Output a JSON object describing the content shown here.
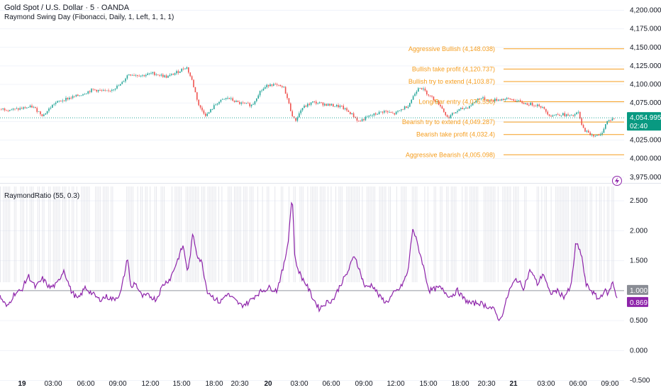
{
  "header": {
    "symbol_title": "Gold Spot / U.S. Dollar · 5 · OANDA",
    "indicator_title": "Raymond Swing Day (Fibonacci, Daily, 1, Left, 1, 1, 1)"
  },
  "indicator_pane": {
    "title": "RaymondRatio (55, 0.3)"
  },
  "colors": {
    "up": "#26a69a",
    "down": "#ef5350",
    "level": "#f59d1e",
    "ratio": "#8e24aa",
    "price_badge": "#089981",
    "current_dotted": "#26a69a",
    "grid": "#f0f3fa",
    "band": "#d1d4dc",
    "text": "#131722",
    "axis_text": "#131722"
  },
  "chart_data": [
    {
      "type": "candlestick",
      "title": "Gold Spot / U.S. Dollar · 5 · OANDA",
      "ylim": [
        3970,
        4210
      ],
      "y_ticks": [
        4200,
        4175,
        4150,
        4125,
        4100,
        4075,
        4050,
        4025,
        4000,
        3975
      ],
      "y_tick_labels": [
        "4,200.000",
        "4,175.000",
        "4,150.000",
        "4,125.000",
        "4,100.000",
        "4,075.000",
        "4,050.000",
        "4,025.000",
        "4,000.000",
        "3,975.000"
      ],
      "current_price": 4054.995,
      "current_price_label": "4,054.995",
      "countdown_label": "02:40",
      "close_anchors": [
        [
          0,
          4067
        ],
        [
          20,
          4066
        ],
        [
          45,
          4070
        ],
        [
          60,
          4058
        ],
        [
          75,
          4074
        ],
        [
          90,
          4080
        ],
        [
          110,
          4085
        ],
        [
          130,
          4093
        ],
        [
          150,
          4090
        ],
        [
          170,
          4100
        ],
        [
          180,
          4114
        ],
        [
          200,
          4112
        ],
        [
          215,
          4115
        ],
        [
          235,
          4110
        ],
        [
          250,
          4117
        ],
        [
          262,
          4124
        ],
        [
          270,
          4105
        ],
        [
          280,
          4070
        ],
        [
          290,
          4058
        ],
        [
          305,
          4075
        ],
        [
          320,
          4082
        ],
        [
          335,
          4075
        ],
        [
          355,
          4072
        ],
        [
          365,
          4090
        ],
        [
          380,
          4101
        ],
        [
          400,
          4095
        ],
        [
          410,
          4062
        ],
        [
          415,
          4050
        ],
        [
          425,
          4068
        ],
        [
          440,
          4076
        ],
        [
          465,
          4072
        ],
        [
          480,
          4070
        ],
        [
          495,
          4060
        ],
        [
          505,
          4050
        ],
        [
          520,
          4057
        ],
        [
          540,
          4064
        ],
        [
          555,
          4060
        ],
        [
          575,
          4072
        ],
        [
          590,
          4098
        ],
        [
          605,
          4085
        ],
        [
          620,
          4072
        ],
        [
          630,
          4055
        ],
        [
          645,
          4065
        ],
        [
          660,
          4070
        ],
        [
          675,
          4082
        ],
        [
          690,
          4078
        ],
        [
          705,
          4080
        ],
        [
          720,
          4080
        ],
        [
          740,
          4074
        ],
        [
          760,
          4072
        ],
        [
          775,
          4058
        ],
        [
          790,
          4060
        ],
        [
          805,
          4057
        ],
        [
          815,
          4062
        ],
        [
          820,
          4042
        ],
        [
          830,
          4033
        ],
        [
          845,
          4030
        ],
        [
          855,
          4050
        ],
        [
          866,
          4054.995
        ]
      ],
      "levels": [
        {
          "label": "Aggressive Bullish (4,148.038)",
          "value": 4148.038
        },
        {
          "label": "Bullish take profit (4,120.737)",
          "value": 4120.737
        },
        {
          "label": "Bullish try to extend (4,103.87)",
          "value": 4103.87
        },
        {
          "label": "Long/Bar entry (4,076.556)",
          "value": 4076.556
        },
        {
          "label": "Bearish try to extend (4,049.287)",
          "value": 4049.287
        },
        {
          "label": "Bearish take profit (4,032.4)",
          "value": 4032.4
        },
        {
          "label": "Aggressive Bearish (4,005.098)",
          "value": 4005.098
        }
      ]
    },
    {
      "type": "line",
      "title": "RaymondRatio (55, 0.3)",
      "ylim": [
        -0.6,
        2.75
      ],
      "y_ticks": [
        2.5,
        2.0,
        1.5,
        1.0,
        0.5,
        0.0,
        -0.5
      ],
      "y_tick_labels": [
        "2.500",
        "2.000",
        "1.500",
        "1.000",
        "0.500",
        "0.000",
        "-0.500"
      ],
      "reference_line": 1.0,
      "reference_label": "1.000",
      "current_value": 0.869,
      "current_value_label": "0.869",
      "anchors": [
        [
          0,
          0.9
        ],
        [
          10,
          0.72
        ],
        [
          20,
          0.95
        ],
        [
          30,
          1.0
        ],
        [
          40,
          1.25
        ],
        [
          50,
          1.05
        ],
        [
          60,
          1.2
        ],
        [
          70,
          1.05
        ],
        [
          80,
          1.1
        ],
        [
          90,
          1.35
        ],
        [
          100,
          1.0
        ],
        [
          110,
          0.85
        ],
        [
          120,
          1.05
        ],
        [
          130,
          0.95
        ],
        [
          140,
          0.85
        ],
        [
          150,
          0.9
        ],
        [
          160,
          0.85
        ],
        [
          170,
          0.95
        ],
        [
          180,
          1.55
        ],
        [
          185,
          1.0
        ],
        [
          190,
          1.15
        ],
        [
          200,
          0.9
        ],
        [
          210,
          0.92
        ],
        [
          220,
          0.85
        ],
        [
          230,
          1.1
        ],
        [
          240,
          1.2
        ],
        [
          250,
          1.5
        ],
        [
          258,
          1.75
        ],
        [
          265,
          1.3
        ],
        [
          272,
          1.95
        ],
        [
          278,
          1.6
        ],
        [
          285,
          1.45
        ],
        [
          292,
          1.0
        ],
        [
          300,
          0.9
        ],
        [
          310,
          0.8
        ],
        [
          320,
          0.95
        ],
        [
          330,
          0.85
        ],
        [
          340,
          0.75
        ],
        [
          350,
          0.8
        ],
        [
          360,
          0.92
        ],
        [
          370,
          1.0
        ],
        [
          380,
          1.05
        ],
        [
          390,
          1.0
        ],
        [
          400,
          1.4
        ],
        [
          406,
          1.8
        ],
        [
          412,
          2.6
        ],
        [
          416,
          1.5
        ],
        [
          424,
          1.25
        ],
        [
          432,
          1.1
        ],
        [
          440,
          0.9
        ],
        [
          450,
          0.7
        ],
        [
          460,
          0.8
        ],
        [
          470,
          0.85
        ],
        [
          480,
          1.1
        ],
        [
          490,
          1.3
        ],
        [
          500,
          1.6
        ],
        [
          508,
          1.3
        ],
        [
          515,
          1.05
        ],
        [
          525,
          1.1
        ],
        [
          535,
          0.9
        ],
        [
          545,
          0.8
        ],
        [
          555,
          0.95
        ],
        [
          565,
          1.05
        ],
        [
          575,
          1.3
        ],
        [
          582,
          2.05
        ],
        [
          588,
          1.8
        ],
        [
          595,
          1.5
        ],
        [
          605,
          1.0
        ],
        [
          620,
          1.05
        ],
        [
          635,
          0.9
        ],
        [
          645,
          1.0
        ],
        [
          655,
          0.85
        ],
        [
          665,
          0.78
        ],
        [
          675,
          0.8
        ],
        [
          685,
          0.75
        ],
        [
          695,
          0.7
        ],
        [
          705,
          0.5
        ],
        [
          712,
          0.75
        ],
        [
          718,
          1.0
        ],
        [
          728,
          1.2
        ],
        [
          738,
          1.05
        ],
        [
          748,
          1.35
        ],
        [
          758,
          1.1
        ],
        [
          766,
          1.3
        ],
        [
          775,
          0.95
        ],
        [
          785,
          1.0
        ],
        [
          795,
          0.9
        ],
        [
          805,
          1.05
        ],
        [
          812,
          1.8
        ],
        [
          820,
          1.6
        ],
        [
          826,
          1.1
        ],
        [
          834,
          1.0
        ],
        [
          844,
          0.85
        ],
        [
          852,
          1.0
        ],
        [
          858,
          0.95
        ],
        [
          864,
          1.15
        ],
        [
          870,
          0.869
        ]
      ]
    }
  ],
  "x_axis": {
    "ticks": [
      {
        "x": 31,
        "label": "19",
        "bold": true
      },
      {
        "x": 75,
        "label": "03:00",
        "bold": false
      },
      {
        "x": 121,
        "label": "06:00",
        "bold": false
      },
      {
        "x": 166,
        "label": "09:00",
        "bold": false
      },
      {
        "x": 212,
        "label": "12:00",
        "bold": false
      },
      {
        "x": 256,
        "label": "15:00",
        "bold": false
      },
      {
        "x": 302,
        "label": "18:00",
        "bold": false
      },
      {
        "x": 338,
        "label": "20:30",
        "bold": false
      },
      {
        "x": 378,
        "label": "20",
        "bold": true
      },
      {
        "x": 422,
        "label": "03:00",
        "bold": false
      },
      {
        "x": 467,
        "label": "06:00",
        "bold": false
      },
      {
        "x": 513,
        "label": "09:00",
        "bold": false
      },
      {
        "x": 558,
        "label": "12:00",
        "bold": false
      },
      {
        "x": 604,
        "label": "15:00",
        "bold": false
      },
      {
        "x": 649,
        "label": "18:00",
        "bold": false
      },
      {
        "x": 686,
        "label": "20:30",
        "bold": false
      },
      {
        "x": 724,
        "label": "21",
        "bold": true
      },
      {
        "x": 770,
        "label": "03:00",
        "bold": false
      },
      {
        "x": 815,
        "label": "06:00",
        "bold": false
      },
      {
        "x": 860,
        "label": "09:00",
        "bold": false
      }
    ]
  }
}
